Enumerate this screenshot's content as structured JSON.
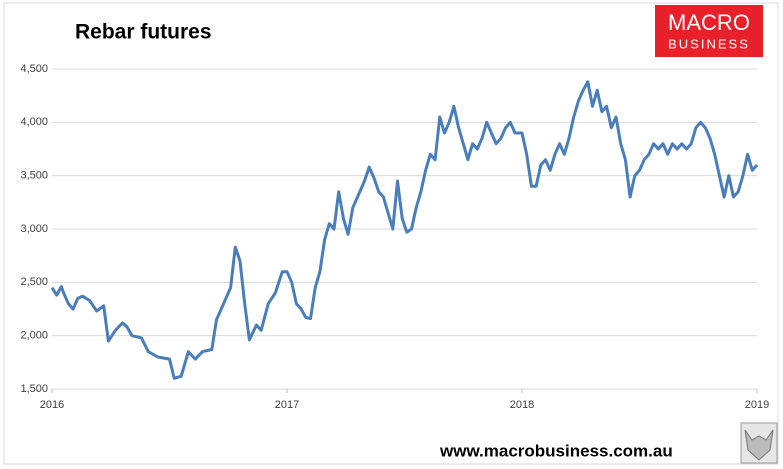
{
  "chart_data": {
    "type": "line",
    "title": "Rebar futures",
    "x": [
      2016.0,
      2016.02,
      2016.04,
      2016.05,
      2016.07,
      2016.09,
      2016.11,
      2016.13,
      2016.16,
      2016.19,
      2016.22,
      2016.24,
      2016.27,
      2016.3,
      2016.32,
      2016.34,
      2016.38,
      2016.41,
      2016.45,
      2016.5,
      2016.52,
      2016.55,
      2016.58,
      2016.61,
      2016.64,
      2016.68,
      2016.7,
      2016.73,
      2016.76,
      2016.78,
      2016.8,
      2016.82,
      2016.84,
      2016.87,
      2016.89,
      2016.92,
      2016.95,
      2016.98,
      2017.0,
      2017.02,
      2017.04,
      2017.06,
      2017.08,
      2017.1,
      2017.12,
      2017.14,
      2017.16,
      2017.18,
      2017.2,
      2017.22,
      2017.24,
      2017.26,
      2017.28,
      2017.3,
      2017.33,
      2017.35,
      2017.37,
      2017.39,
      2017.41,
      2017.43,
      2017.45,
      2017.47,
      2017.49,
      2017.51,
      2017.53,
      2017.55,
      2017.57,
      2017.59,
      2017.61,
      2017.63,
      2017.65,
      2017.67,
      2017.69,
      2017.71,
      2017.73,
      2017.75,
      2017.77,
      2017.79,
      2017.81,
      2017.83,
      2017.85,
      2017.87,
      2017.89,
      2017.91,
      2017.93,
      2017.95,
      2017.97,
      2018.0,
      2018.02,
      2018.04,
      2018.06,
      2018.08,
      2018.1,
      2018.12,
      2018.14,
      2018.16,
      2018.18,
      2018.2,
      2018.22,
      2018.24,
      2018.26,
      2018.28,
      2018.3,
      2018.32,
      2018.34,
      2018.36,
      2018.38,
      2018.4,
      2018.42,
      2018.44,
      2018.46,
      2018.48,
      2018.5,
      2018.52,
      2018.54,
      2018.56,
      2018.58,
      2018.6,
      2018.62,
      2018.64,
      2018.66,
      2018.68,
      2018.7,
      2018.72,
      2018.74,
      2018.76,
      2018.78,
      2018.8,
      2018.82,
      2018.84,
      2018.86,
      2018.88,
      2018.9,
      2018.92,
      2018.94,
      2018.96,
      2018.98,
      2019.0
    ],
    "series": [
      {
        "color": "#4a7ebb",
        "values": [
          2450,
          2380,
          2460,
          2400,
          2300,
          2250,
          2350,
          2370,
          2330,
          2230,
          2280,
          1950,
          2050,
          2120,
          2080,
          2000,
          1980,
          1850,
          1800,
          1780,
          1600,
          1620,
          1850,
          1780,
          1850,
          1870,
          2150,
          2300,
          2450,
          2830,
          2700,
          2300,
          1960,
          2100,
          2050,
          2300,
          2400,
          2600,
          2600,
          2500,
          2300,
          2250,
          2170,
          2160,
          2450,
          2600,
          2900,
          3050,
          3000,
          3350,
          3100,
          2950,
          3200,
          3300,
          3450,
          3580,
          3480,
          3350,
          3300,
          3150,
          3000,
          3450,
          3100,
          2970,
          3000,
          3200,
          3350,
          3550,
          3700,
          3650,
          4050,
          3900,
          4000,
          4150,
          3950,
          3800,
          3650,
          3800,
          3750,
          3850,
          4000,
          3900,
          3800,
          3850,
          3950,
          4000,
          3900,
          3900,
          3700,
          3400,
          3400,
          3600,
          3650,
          3550,
          3700,
          3800,
          3700,
          3850,
          4050,
          4200,
          4300,
          4380,
          4150,
          4300,
          4100,
          4150,
          3950,
          4050,
          3800,
          3650,
          3300,
          3500,
          3550,
          3650,
          3700,
          3800,
          3750,
          3800,
          3700,
          3800,
          3750,
          3800,
          3750,
          3800,
          3950,
          4000,
          3950,
          3850,
          3700,
          3500,
          3300,
          3500,
          3300,
          3350,
          3500,
          3700,
          3550,
          3600
        ]
      }
    ],
    "xlim": [
      2016,
      2019
    ],
    "xticks": [
      2016,
      2017,
      2018,
      2019
    ],
    "ylim": [
      1500,
      4500
    ],
    "yticks": [
      {
        "value": 1500,
        "label": "1,500"
      },
      {
        "value": 2000,
        "label": "2,000"
      },
      {
        "value": 2500,
        "label": "2,500"
      },
      {
        "value": 3000,
        "label": "3,000"
      },
      {
        "value": 3500,
        "label": "3,500"
      },
      {
        "value": 4000,
        "label": "4,000"
      },
      {
        "value": 4500,
        "label": "4,500"
      }
    ],
    "grid": true
  },
  "logo": {
    "line1": "MACRO",
    "line2": "BUSINESS"
  },
  "footer": "www.macrobusiness.com.au"
}
